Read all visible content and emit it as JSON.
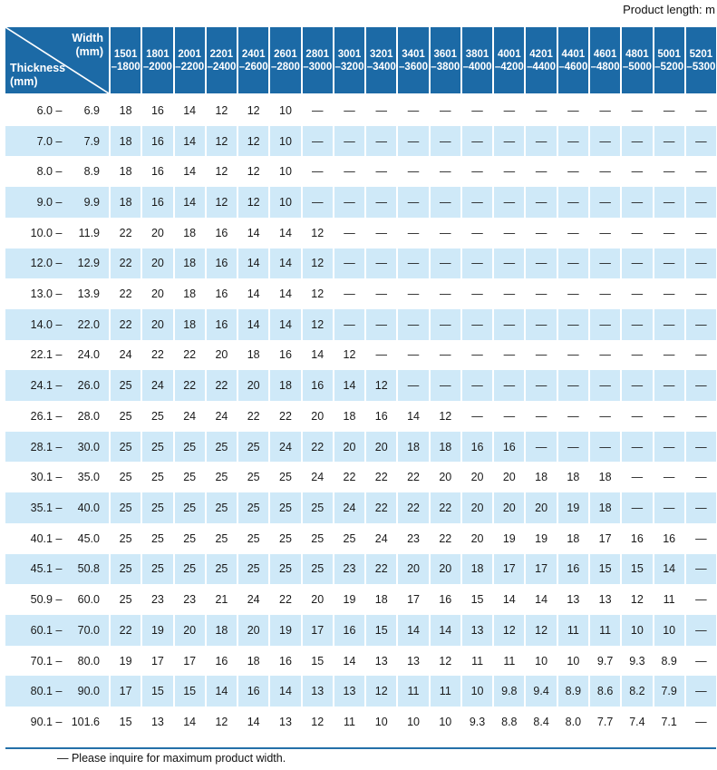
{
  "page": {
    "product_length_label": "Product length: m",
    "footnote": "— Please inquire for maximum product width."
  },
  "colors": {
    "header_blue": "#1c6aa6",
    "stripe_blue": "#cfe9f8",
    "rule_blue": "#2470a8"
  },
  "table": {
    "range_dash": "–",
    "corner": {
      "width_title": "Width",
      "width_unit": "(mm)",
      "thickness_title": "Thickness",
      "thickness_unit": "(mm)"
    },
    "columns": [
      {
        "from": "1501",
        "to": "–1800"
      },
      {
        "from": "1801",
        "to": "–2000"
      },
      {
        "from": "2001",
        "to": "–2200"
      },
      {
        "from": "2201",
        "to": "–2400"
      },
      {
        "from": "2401",
        "to": "–2600"
      },
      {
        "from": "2601",
        "to": "–2800"
      },
      {
        "from": "2801",
        "to": "–3000"
      },
      {
        "from": "3001",
        "to": "–3200"
      },
      {
        "from": "3201",
        "to": "–3400"
      },
      {
        "from": "3401",
        "to": "–3600"
      },
      {
        "from": "3601",
        "to": "–3800"
      },
      {
        "from": "3801",
        "to": "–4000"
      },
      {
        "from": "4001",
        "to": "–4200"
      },
      {
        "from": "4201",
        "to": "–4400"
      },
      {
        "from": "4401",
        "to": "–4600"
      },
      {
        "from": "4601",
        "to": "–4800"
      },
      {
        "from": "4801",
        "to": "–5000"
      },
      {
        "from": "5001",
        "to": "–5200"
      },
      {
        "from": "5201",
        "to": "–5300"
      }
    ],
    "rows": [
      {
        "from": "6.0",
        "to": "6.9",
        "values": [
          "18",
          "16",
          "14",
          "12",
          "12",
          "10",
          "—",
          "—",
          "—",
          "—",
          "—",
          "—",
          "—",
          "—",
          "—",
          "—",
          "—",
          "—",
          "—"
        ]
      },
      {
        "from": "7.0",
        "to": "7.9",
        "values": [
          "18",
          "16",
          "14",
          "12",
          "12",
          "10",
          "—",
          "—",
          "—",
          "—",
          "—",
          "—",
          "—",
          "—",
          "—",
          "—",
          "—",
          "—",
          "—"
        ]
      },
      {
        "from": "8.0",
        "to": "8.9",
        "values": [
          "18",
          "16",
          "14",
          "12",
          "12",
          "10",
          "—",
          "—",
          "—",
          "—",
          "—",
          "—",
          "—",
          "—",
          "—",
          "—",
          "—",
          "—",
          "—"
        ]
      },
      {
        "from": "9.0",
        "to": "9.9",
        "values": [
          "18",
          "16",
          "14",
          "12",
          "12",
          "10",
          "—",
          "—",
          "—",
          "—",
          "—",
          "—",
          "—",
          "—",
          "—",
          "—",
          "—",
          "—",
          "—"
        ]
      },
      {
        "from": "10.0",
        "to": "11.9",
        "values": [
          "22",
          "20",
          "18",
          "16",
          "14",
          "14",
          "12",
          "—",
          "—",
          "—",
          "—",
          "—",
          "—",
          "—",
          "—",
          "—",
          "—",
          "—",
          "—"
        ]
      },
      {
        "from": "12.0",
        "to": "12.9",
        "values": [
          "22",
          "20",
          "18",
          "16",
          "14",
          "14",
          "12",
          "—",
          "—",
          "—",
          "—",
          "—",
          "—",
          "—",
          "—",
          "—",
          "—",
          "—",
          "—"
        ]
      },
      {
        "from": "13.0",
        "to": "13.9",
        "values": [
          "22",
          "20",
          "18",
          "16",
          "14",
          "14",
          "12",
          "—",
          "—",
          "—",
          "—",
          "—",
          "—",
          "—",
          "—",
          "—",
          "—",
          "—",
          "—"
        ]
      },
      {
        "from": "14.0",
        "to": "22.0",
        "values": [
          "22",
          "20",
          "18",
          "16",
          "14",
          "14",
          "12",
          "—",
          "—",
          "—",
          "—",
          "—",
          "—",
          "—",
          "—",
          "—",
          "—",
          "—",
          "—"
        ]
      },
      {
        "from": "22.1",
        "to": "24.0",
        "values": [
          "24",
          "22",
          "22",
          "20",
          "18",
          "16",
          "14",
          "12",
          "—",
          "—",
          "—",
          "—",
          "—",
          "—",
          "—",
          "—",
          "—",
          "—",
          "—"
        ]
      },
      {
        "from": "24.1",
        "to": "26.0",
        "values": [
          "25",
          "24",
          "22",
          "22",
          "20",
          "18",
          "16",
          "14",
          "12",
          "—",
          "—",
          "—",
          "—",
          "—",
          "—",
          "—",
          "—",
          "—",
          "—"
        ]
      },
      {
        "from": "26.1",
        "to": "28.0",
        "values": [
          "25",
          "25",
          "24",
          "24",
          "22",
          "22",
          "20",
          "18",
          "16",
          "14",
          "12",
          "—",
          "—",
          "—",
          "—",
          "—",
          "—",
          "—",
          "—"
        ]
      },
      {
        "from": "28.1",
        "to": "30.0",
        "values": [
          "25",
          "25",
          "25",
          "25",
          "25",
          "24",
          "22",
          "20",
          "20",
          "18",
          "18",
          "16",
          "16",
          "—",
          "—",
          "—",
          "—",
          "—",
          "—"
        ]
      },
      {
        "from": "30.1",
        "to": "35.0",
        "values": [
          "25",
          "25",
          "25",
          "25",
          "25",
          "25",
          "24",
          "22",
          "22",
          "22",
          "20",
          "20",
          "20",
          "18",
          "18",
          "18",
          "—",
          "—",
          "—"
        ]
      },
      {
        "from": "35.1",
        "to": "40.0",
        "values": [
          "25",
          "25",
          "25",
          "25",
          "25",
          "25",
          "25",
          "24",
          "22",
          "22",
          "22",
          "20",
          "20",
          "20",
          "19",
          "18",
          "—",
          "—",
          "—"
        ]
      },
      {
        "from": "40.1",
        "to": "45.0",
        "values": [
          "25",
          "25",
          "25",
          "25",
          "25",
          "25",
          "25",
          "25",
          "24",
          "23",
          "22",
          "20",
          "19",
          "19",
          "18",
          "17",
          "16",
          "16",
          "—"
        ]
      },
      {
        "from": "45.1",
        "to": "50.8",
        "values": [
          "25",
          "25",
          "25",
          "25",
          "25",
          "25",
          "25",
          "23",
          "22",
          "20",
          "20",
          "18",
          "17",
          "17",
          "16",
          "15",
          "15",
          "14",
          "—"
        ]
      },
      {
        "from": "50.9",
        "to": "60.0",
        "values": [
          "25",
          "23",
          "23",
          "21",
          "24",
          "22",
          "20",
          "19",
          "18",
          "17",
          "16",
          "15",
          "14",
          "14",
          "13",
          "13",
          "12",
          "11",
          "—"
        ]
      },
      {
        "from": "60.1",
        "to": "70.0",
        "values": [
          "22",
          "19",
          "20",
          "18",
          "20",
          "19",
          "17",
          "16",
          "15",
          "14",
          "14",
          "13",
          "12",
          "12",
          "11",
          "11",
          "10",
          "10",
          "—"
        ]
      },
      {
        "from": "70.1",
        "to": "80.0",
        "values": [
          "19",
          "17",
          "17",
          "16",
          "18",
          "16",
          "15",
          "14",
          "13",
          "13",
          "12",
          "11",
          "11",
          "10",
          "10",
          "9.7",
          "9.3",
          "8.9",
          "—"
        ]
      },
      {
        "from": "80.1",
        "to": "90.0",
        "values": [
          "17",
          "15",
          "15",
          "14",
          "16",
          "14",
          "13",
          "13",
          "12",
          "11",
          "11",
          "10",
          "9.8",
          "9.4",
          "8.9",
          "8.6",
          "8.2",
          "7.9",
          "—"
        ]
      },
      {
        "from": "90.1",
        "to": "101.6",
        "values": [
          "15",
          "13",
          "14",
          "12",
          "14",
          "13",
          "12",
          "11",
          "10",
          "10",
          "10",
          "9.3",
          "8.8",
          "8.4",
          "8.0",
          "7.7",
          "7.4",
          "7.1",
          "—"
        ]
      }
    ]
  }
}
